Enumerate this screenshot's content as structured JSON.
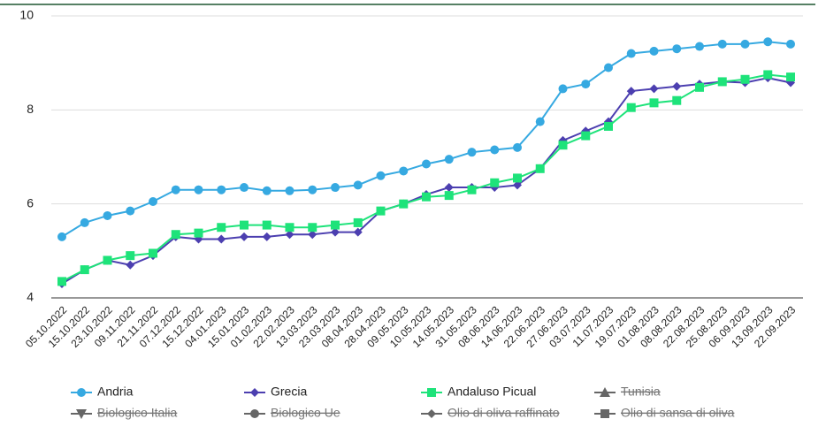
{
  "chart_data": {
    "type": "line",
    "categories": [
      "05.10.2022",
      "15.10.2022",
      "23.10.2022",
      "09.11.2022",
      "21.11.2022",
      "07.12.2022",
      "15.12.2022",
      "04.01.2023",
      "15.01.2023",
      "01.02.2023",
      "22.02.2023",
      "13.03.2023",
      "23.03.2023",
      "08.04.2023",
      "28.04.2023",
      "09.05.2023",
      "10.05.2023",
      "14.05.2023",
      "31.05.2023",
      "08.06.2023",
      "14.06.2023",
      "22.06.2023",
      "27.06.2023",
      "03.07.2023",
      "11.07.2023",
      "19.07.2023",
      "01.08.2023",
      "08.08.2023",
      "22.08.2023",
      "25.08.2023",
      "06.09.2023",
      "13.09.2023",
      "22.09.2023"
    ],
    "series": [
      {
        "name": "Andria",
        "color": "#36a9e1",
        "marker": "circle",
        "values": [
          5.3,
          5.6,
          5.75,
          5.85,
          6.05,
          6.3,
          6.3,
          6.3,
          6.35,
          6.28,
          6.28,
          6.3,
          6.35,
          6.4,
          6.6,
          6.7,
          6.85,
          6.95,
          7.1,
          7.15,
          7.2,
          7.75,
          8.45,
          8.55,
          8.9,
          9.2,
          9.25,
          9.3,
          9.35,
          9.4,
          9.4,
          9.45,
          9.4
        ]
      },
      {
        "name": "Grecia",
        "color": "#4c3fb0",
        "marker": "diamond",
        "values": [
          4.3,
          4.6,
          4.8,
          4.7,
          4.9,
          5.3,
          5.25,
          5.25,
          5.3,
          5.3,
          5.35,
          5.35,
          5.4,
          5.4,
          5.85,
          6.0,
          6.2,
          6.35,
          6.35,
          6.35,
          6.4,
          6.75,
          7.35,
          7.55,
          7.75,
          8.4,
          8.45,
          8.5,
          8.55,
          8.6,
          8.58,
          8.68,
          8.58
        ]
      },
      {
        "name": "Andaluso Picual",
        "color": "#1ee37a",
        "marker": "square",
        "values": [
          4.35,
          4.6,
          4.8,
          4.9,
          4.95,
          5.35,
          5.38,
          5.5,
          5.55,
          5.55,
          5.5,
          5.5,
          5.55,
          5.6,
          5.85,
          6.0,
          6.15,
          6.18,
          6.3,
          6.45,
          6.55,
          6.75,
          7.25,
          7.45,
          7.65,
          8.05,
          8.15,
          8.2,
          8.48,
          8.6,
          8.65,
          8.75,
          8.7
        ]
      }
    ],
    "hidden_series": [
      {
        "name": "Tunisia",
        "marker": "triangle"
      },
      {
        "name": "Biologico Italia",
        "marker": "triangle-down"
      },
      {
        "name": "Biologico Ue",
        "marker": "circle"
      },
      {
        "name": "Olio di oliva raffinato",
        "marker": "diamond"
      },
      {
        "name": "Olio di sansa di oliva",
        "marker": "square"
      }
    ],
    "ylim": [
      4,
      10
    ],
    "yticks": [
      4,
      6,
      8,
      10
    ],
    "grid": true
  }
}
